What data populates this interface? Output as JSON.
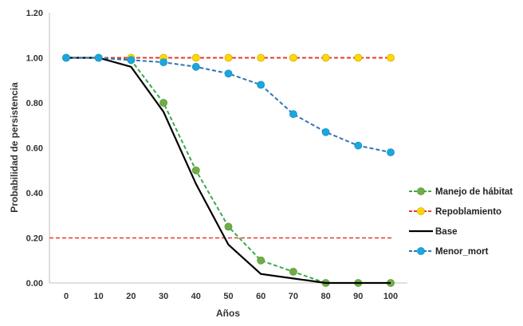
{
  "chart_data": {
    "type": "line",
    "xlabel": "Años",
    "ylabel": "Probabilidad de persistencia",
    "x": [
      0,
      10,
      20,
      30,
      40,
      50,
      60,
      70,
      80,
      90,
      100
    ],
    "x_tick_labels": [
      "0",
      "10",
      "20",
      "30",
      "40",
      "50",
      "60",
      "70",
      "80",
      "90",
      "100"
    ],
    "ylim": [
      0,
      1.2
    ],
    "y_ticks": [
      0,
      0.2,
      0.4,
      0.6,
      0.8,
      1.0,
      1.2
    ],
    "y_tick_labels": [
      "0.00",
      "0.20",
      "0.40",
      "0.60",
      "0.80",
      "1.00",
      "1.20"
    ],
    "grid": false,
    "legend_position": "right",
    "series": [
      {
        "name": "Manejo de hábitat",
        "values": [
          1.0,
          1.0,
          0.99,
          0.8,
          0.5,
          0.25,
          0.1,
          0.05,
          0.0,
          0.0,
          0.0
        ],
        "line_color": "#3aaa4a",
        "marker_color": "#70ad47",
        "marker_stroke": "#5b9a3a",
        "dashed": true
      },
      {
        "name": "Repoblamiento",
        "values": [
          1.0,
          1.0,
          1.0,
          1.0,
          1.0,
          1.0,
          1.0,
          1.0,
          1.0,
          1.0,
          1.0
        ],
        "line_color": "#e8382a",
        "marker_color": "#ffd700",
        "marker_stroke": "#d4b000",
        "dashed": true
      },
      {
        "name": "Base",
        "values": [
          1.0,
          1.0,
          0.96,
          0.76,
          0.44,
          0.17,
          0.04,
          0.02,
          0.0,
          0.0,
          0.0
        ],
        "line_color": "#000000",
        "dashed": false
      },
      {
        "name": "Menor_mort",
        "values": [
          1.0,
          1.0,
          0.99,
          0.98,
          0.96,
          0.93,
          0.88,
          0.75,
          0.67,
          0.61,
          0.58
        ],
        "line_color": "#2e75b6",
        "marker_color": "#1aa7e0",
        "marker_stroke": "#1592c6",
        "dashed": true
      }
    ],
    "reference_line": {
      "y": 0.2,
      "color": "#e8382a",
      "dashed": true
    }
  }
}
